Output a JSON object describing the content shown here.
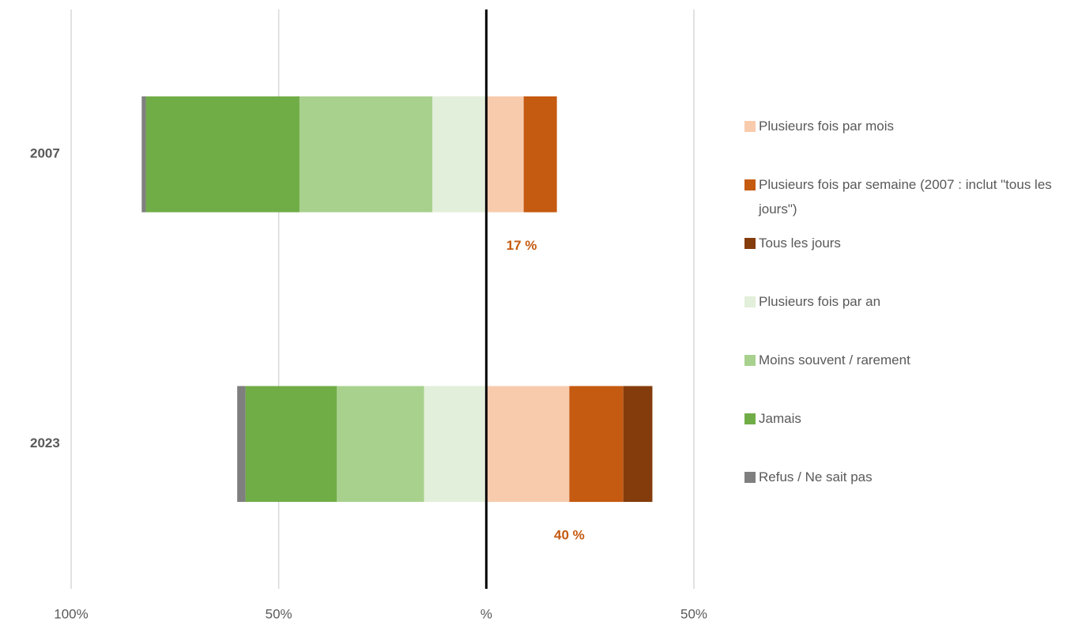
{
  "chart_data": {
    "type": "diverging-bar",
    "categories": [
      "2007",
      "2023"
    ],
    "series": [
      {
        "name": "Plusieurs fois par mois",
        "color": "#f8cbad",
        "values": [
          9,
          20
        ]
      },
      {
        "name": "Plusieurs fois par semaine (2007 : inclut \"tous les jours\")",
        "color": "#c55a11",
        "values": [
          8,
          13
        ]
      },
      {
        "name": "Tous les jours",
        "color": "#843c0c",
        "values": [
          null,
          7
        ]
      },
      {
        "name": "Plusieurs fois par an",
        "color": "#e2efda",
        "values": [
          -13,
          -15
        ]
      },
      {
        "name": "Moins souvent / rarement",
        "color": "#a9d18e",
        "values": [
          -32,
          -21
        ]
      },
      {
        "name": "Jamais",
        "color": "#70ad47",
        "values": [
          -37,
          -22
        ]
      },
      {
        "name": "Refus / Ne sait pas",
        "color": "#7f7f7f",
        "values": [
          -1,
          -2
        ]
      }
    ],
    "totals": {
      "values": [
        17,
        40
      ],
      "value_labels": [
        "17 %",
        "40 %"
      ],
      "color": "#c55a11"
    },
    "xlim": [
      -100,
      50
    ],
    "xticks": [
      {
        "value": -100,
        "label": "100%"
      },
      {
        "value": -50,
        "label": "50%"
      },
      {
        "value": 0,
        "label": "%"
      },
      {
        "value": 50,
        "label": "50%"
      }
    ],
    "grid": true,
    "legend": "right"
  }
}
